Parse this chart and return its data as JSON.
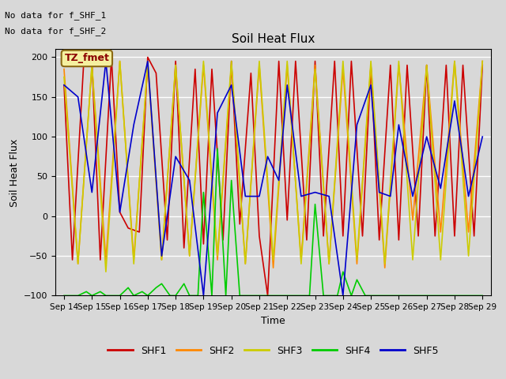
{
  "title": "Soil Heat Flux",
  "xlabel": "Time",
  "ylabel": "Soil Heat Flux",
  "ylim": [
    -100,
    210
  ],
  "yticks": [
    -100,
    -50,
    0,
    50,
    100,
    150,
    200
  ],
  "annotation_text1": "No data for f_SHF_1",
  "annotation_text2": "No data for f_SHF_2",
  "box_label": "TZ_fmet",
  "colors": {
    "SHF1": "#cc0000",
    "SHF2": "#ff8800",
    "SHF3": "#cccc00",
    "SHF4": "#00cc00",
    "SHF5": "#0000cc"
  },
  "plot_bg": "#d8d8d8",
  "fig_bg": "#d8d8d8",
  "grid_color": "#ffffff",
  "x_labels": [
    "Sep 14",
    "Sep 15",
    "Sep 16",
    "Sep 17",
    "Sep 18",
    "Sep 19",
    "Sep 20",
    "Sep 21",
    "Sep 22",
    "Sep 23",
    "Sep 24",
    "Sep 25",
    "Sep 26",
    "Sep 27",
    "Sep 28",
    "Sep 29"
  ],
  "shf1_x": [
    0,
    0.3,
    0.7,
    1,
    1.3,
    1.7,
    2,
    2.3,
    2.7,
    3,
    3.3,
    3.7,
    4,
    4.3,
    4.7,
    5,
    5.3,
    5.7,
    6,
    6.3,
    6.7,
    7,
    7.3,
    7.7,
    8,
    8.3,
    8.7,
    9,
    9.3,
    9.7,
    10,
    10.3,
    10.7,
    11,
    11.3,
    11.7,
    12,
    12.3,
    12.7,
    13,
    13.3,
    13.7,
    14,
    14.3,
    14.7,
    15
  ],
  "shf1_y": [
    165,
    -55,
    190,
    195,
    -55,
    200,
    5,
    -15,
    -20,
    200,
    180,
    -30,
    195,
    -40,
    185,
    -35,
    185,
    -30,
    195,
    -10,
    180,
    -25,
    -100,
    195,
    -5,
    195,
    -30,
    195,
    -25,
    195,
    -25,
    195,
    -25,
    190,
    -30,
    190,
    -30,
    190,
    -25,
    190,
    -25,
    190,
    -25,
    190,
    -25,
    190
  ],
  "shf2_x": [
    0,
    0.5,
    1,
    1.5,
    2,
    2.5,
    3,
    3.5,
    4,
    4.5,
    5,
    5.5,
    6,
    6.5,
    7,
    7.5,
    8,
    8.5,
    9,
    9.5,
    10,
    10.5,
    11,
    11.5,
    12,
    12.5,
    13,
    13.5,
    14,
    14.5,
    15
  ],
  "shf2_y": [
    185,
    -60,
    190,
    -55,
    195,
    -55,
    190,
    -55,
    190,
    -50,
    190,
    -55,
    190,
    -60,
    190,
    -65,
    190,
    -55,
    190,
    -60,
    185,
    -60,
    190,
    -65,
    190,
    -5,
    190,
    -20,
    195,
    -20,
    195
  ],
  "shf3_x": [
    0,
    0.5,
    1,
    1.5,
    2,
    2.5,
    3,
    3.5,
    4,
    4.5,
    5,
    5.5,
    6,
    6.5,
    7,
    7.5,
    8,
    8.5,
    9,
    9.5,
    10,
    10.5,
    11,
    11.5,
    12,
    12.5,
    13,
    13.5,
    14,
    14.5,
    15
  ],
  "shf3_y": [
    175,
    -60,
    190,
    -70,
    195,
    -60,
    195,
    -55,
    190,
    -50,
    195,
    -50,
    195,
    -60,
    195,
    -55,
    195,
    -60,
    185,
    -60,
    195,
    -55,
    195,
    -60,
    195,
    -55,
    190,
    -55,
    195,
    -50,
    195
  ],
  "shf4_x": [
    0,
    0.2,
    0.5,
    0.8,
    1,
    1.3,
    1.5,
    1.8,
    2,
    2.3,
    2.5,
    2.8,
    3,
    3.3,
    3.5,
    3.8,
    4,
    4.3,
    4.5,
    4.8,
    5,
    5.3,
    5.5,
    5.8,
    6,
    6.3,
    6.5,
    6.8,
    7,
    7.3,
    7.5,
    7.8,
    8,
    8.3,
    8.5,
    8.8,
    9,
    9.3,
    9.5,
    9.8,
    10,
    10.3,
    10.5,
    10.8,
    11,
    11.3,
    11.5,
    11.8,
    12,
    12.3,
    12.5,
    12.8,
    13,
    13.3,
    13.5,
    13.8,
    14,
    14.3,
    14.5,
    14.8,
    15
  ],
  "shf4_y": [
    -100,
    -100,
    -100,
    -95,
    -100,
    -95,
    -100,
    -100,
    -100,
    -90,
    -100,
    -95,
    -100,
    -90,
    -85,
    -100,
    -100,
    -85,
    -100,
    -100,
    30,
    -100,
    85,
    -100,
    45,
    -100,
    -100,
    -100,
    -100,
    -100,
    -100,
    -100,
    -100,
    -100,
    -100,
    -100,
    15,
    -100,
    -100,
    -100,
    -70,
    -100,
    -80,
    -100,
    -100,
    -100,
    -100,
    -100,
    -100,
    -100,
    -100,
    -100,
    -100,
    -100,
    -100,
    -100,
    -100,
    -100,
    -100,
    -100,
    -100
  ],
  "shf5_x": [
    0,
    0.5,
    1,
    1.5,
    2,
    2.5,
    3,
    3.5,
    4,
    4.5,
    5,
    5.5,
    6,
    6.5,
    7,
    7.3,
    7.7,
    8,
    8.5,
    9,
    9.5,
    10,
    10.5,
    11,
    11.3,
    11.7,
    12,
    12.5,
    13,
    13.5,
    14,
    14.5,
    15
  ],
  "shf5_y": [
    165,
    150,
    30,
    195,
    5,
    115,
    195,
    -50,
    75,
    45,
    -100,
    130,
    165,
    25,
    25,
    75,
    45,
    165,
    25,
    30,
    25,
    -100,
    115,
    165,
    30,
    25,
    115,
    25,
    100,
    35,
    145,
    25,
    100
  ]
}
